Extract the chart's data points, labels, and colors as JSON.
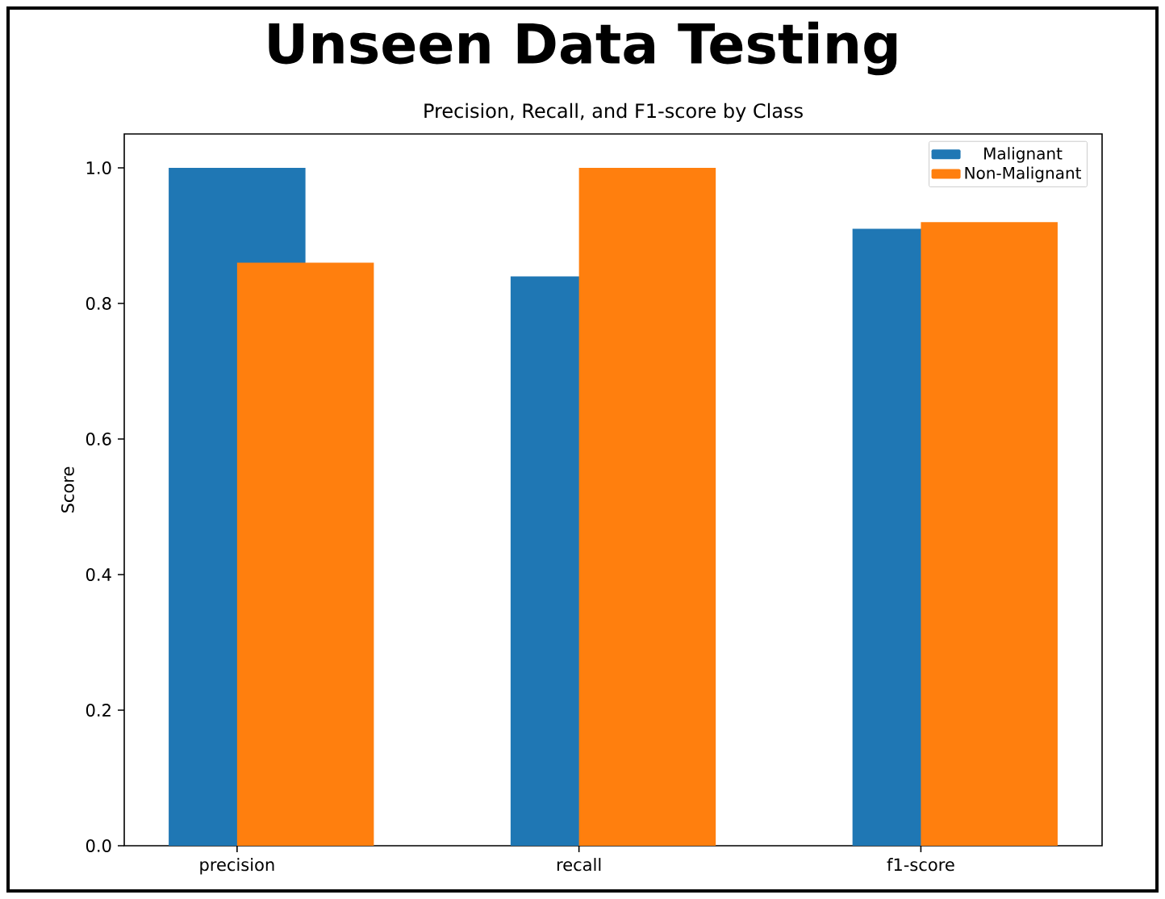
{
  "chart_data": {
    "type": "bar",
    "title": "Unseen Data Testing",
    "subtitle": "Precision, Recall, and F1-score by Class",
    "ylabel": "Score",
    "categories": [
      "precision",
      "recall",
      "f1-score"
    ],
    "series": [
      {
        "name": "Malignant",
        "color": "#1f77b4",
        "values": [
          1.0,
          0.84,
          0.91
        ]
      },
      {
        "name": "Non-Malignant",
        "color": "#ff7f0e",
        "values": [
          0.86,
          1.0,
          0.92
        ]
      }
    ],
    "ylim": [
      0,
      1.05
    ],
    "yticks": [
      {
        "value": 0,
        "label": "0.0"
      },
      {
        "value": 0.2,
        "label": "0.2"
      },
      {
        "value": 0.4,
        "label": "0.4"
      },
      {
        "value": 0.6,
        "label": "0.6"
      },
      {
        "value": 0.8,
        "label": "0.8"
      },
      {
        "value": 1.0,
        "label": "1.0"
      }
    ],
    "legend": "top right"
  }
}
